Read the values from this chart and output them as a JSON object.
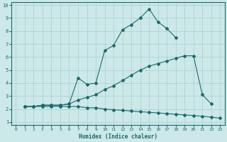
{
  "xlabel": "Humidex (Indice chaleur)",
  "xlim": [
    -0.5,
    23.5
  ],
  "ylim": [
    0.8,
    10.2
  ],
  "xticks": [
    0,
    1,
    2,
    3,
    4,
    5,
    6,
    7,
    8,
    9,
    10,
    11,
    12,
    13,
    14,
    15,
    16,
    17,
    18,
    19,
    20,
    21,
    22,
    23
  ],
  "yticks": [
    1,
    2,
    3,
    4,
    5,
    6,
    7,
    8,
    9,
    10
  ],
  "bg_color": "#cce8e8",
  "line_color": "#1a6b6b",
  "grid_color": "#aacfcf",
  "line1_x": [
    1,
    2,
    3,
    4,
    5,
    6,
    7,
    8,
    9,
    10,
    11,
    12,
    13,
    14,
    15,
    16,
    17,
    18
  ],
  "line1_y": [
    2.2,
    2.2,
    2.3,
    2.3,
    2.3,
    2.4,
    4.4,
    3.9,
    4.0,
    6.5,
    6.9,
    8.1,
    8.5,
    9.0,
    9.7,
    8.7,
    8.2,
    7.5
  ],
  "line2_x": [
    1,
    2,
    3,
    4,
    5,
    6,
    7,
    8,
    9,
    10,
    11,
    12,
    13,
    14,
    15,
    16,
    17,
    18,
    19,
    20,
    21,
    22
  ],
  "line2_y": [
    2.2,
    2.2,
    2.3,
    2.3,
    2.3,
    2.4,
    2.7,
    2.9,
    3.1,
    3.5,
    3.8,
    4.2,
    4.6,
    5.0,
    5.3,
    5.5,
    5.7,
    5.9,
    6.1,
    6.1,
    3.1,
    2.4
  ],
  "line3_x": [
    1,
    2,
    3,
    4,
    5,
    6,
    7,
    8,
    9,
    10,
    11,
    12,
    13,
    14,
    15,
    16,
    17,
    18,
    19,
    20,
    21,
    22,
    23
  ],
  "line3_y": [
    2.2,
    2.2,
    2.2,
    2.2,
    2.2,
    2.2,
    2.2,
    2.1,
    2.1,
    2.0,
    1.95,
    1.9,
    1.85,
    1.8,
    1.75,
    1.7,
    1.65,
    1.6,
    1.55,
    1.5,
    1.45,
    1.38,
    1.3
  ]
}
